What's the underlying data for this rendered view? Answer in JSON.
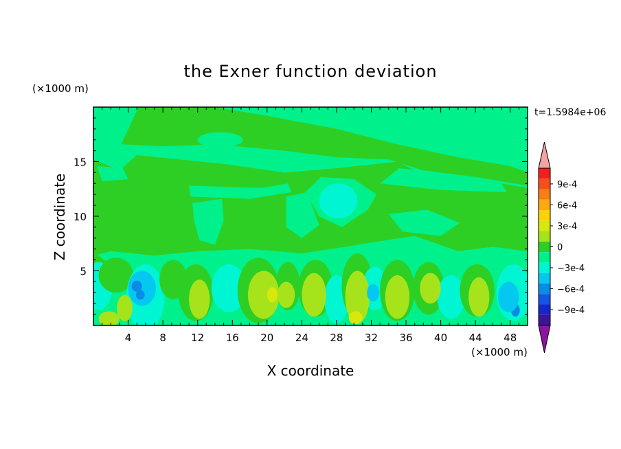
{
  "chart_data": {
    "type": "heatmap",
    "title": "the Exner function deviation",
    "xlabel": "X coordinate",
    "ylabel": "Z coordinate",
    "x_unit": "(×1000 m)",
    "y_unit": "(×1000 m)",
    "time_label": "t=1.5984e+06",
    "xlim": [
      0,
      50
    ],
    "ylim": [
      0,
      20
    ],
    "x_ticks": [
      4,
      8,
      12,
      16,
      20,
      24,
      28,
      32,
      36,
      40,
      44,
      48
    ],
    "x_tick_labels": [
      "4",
      "8",
      "12",
      "16",
      "20",
      "24",
      "28",
      "32",
      "36",
      "40",
      "44",
      "48"
    ],
    "y_ticks": [
      5,
      10,
      15
    ],
    "y_tick_labels": [
      "5",
      "10",
      "15"
    ],
    "colorbar": {
      "ticks": [
        0.0009,
        0.0006,
        0.0003,
        0,
        -0.0003,
        -0.0006,
        -0.0009
      ],
      "tick_labels": [
        "9e-4",
        "6e-4",
        "3e-4",
        "0",
        "−3e-4",
        "−6e-4",
        "−9e-4"
      ],
      "levels_high_to_low": [
        0.00105,
        0.0009,
        0.00075,
        0.0006,
        0.00045,
        0.0003,
        0.00015,
        0,
        -0.00015,
        -0.0003,
        -0.00045,
        -0.0006,
        -0.00075,
        -0.0009,
        -0.00105
      ],
      "colors_high_to_low": [
        "#f4a3a3",
        "#f02020",
        "#f5501a",
        "#f87d14",
        "#fcaa0f",
        "#fdd20a",
        "#d7e80c",
        "#a6e31a",
        "#2ecf24",
        "#00f08c",
        "#00f5d2",
        "#05c8f0",
        "#0a8ce6",
        "#1455e6",
        "#1428c8",
        "#3c1496",
        "#8c14a0"
      ]
    },
    "colors": {
      "zero_band": "#2ecf24",
      "slightly_negative": "#00f08c",
      "negative": "#00f5d2",
      "more_negative": "#05c8f0",
      "strong_negative": "#0a8ce6",
      "slightly_positive": "#a6e31a",
      "positive": "#d7e80c"
    }
  }
}
